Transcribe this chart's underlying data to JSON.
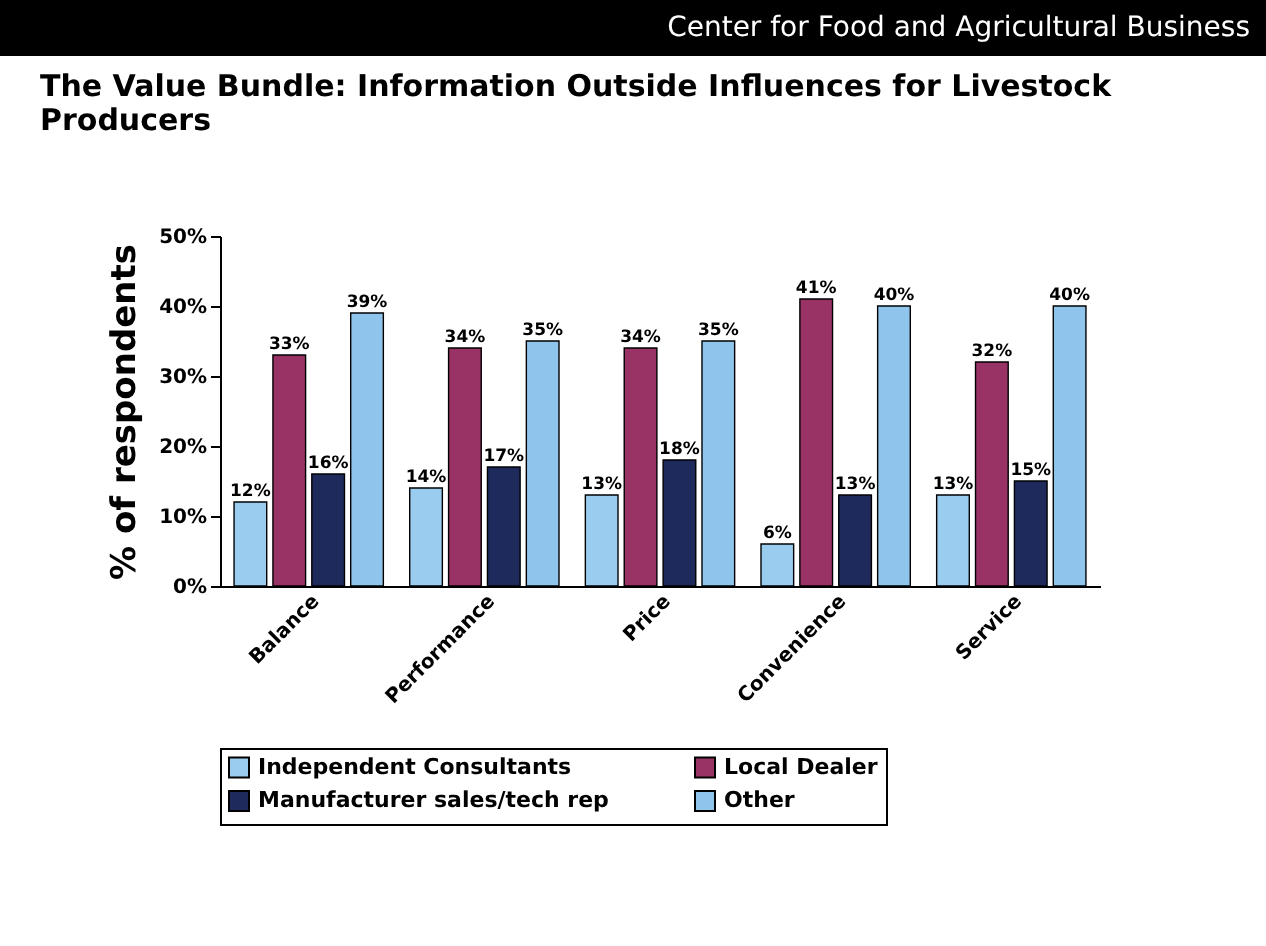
{
  "chart_data": {
    "type": "bar",
    "title": "The Value Bundle: Information Outside Influences for Livestock Producers",
    "annotations": [
      "Center for Food and Agricultural Business"
    ],
    "ylabel": "% of respondents",
    "categories": [
      "Balance",
      "Performance",
      "Price",
      "Convenience",
      "Service"
    ],
    "series": [
      {
        "name": "Independent Consultants",
        "color": "#99ccee",
        "values": [
          12,
          14,
          13,
          6,
          13
        ],
        "value_labels": [
          "12%",
          "14%",
          "13%",
          "6%",
          "13%"
        ]
      },
      {
        "name": "Local Dealer",
        "color": "#993366",
        "values": [
          33,
          34,
          34,
          41,
          32
        ],
        "value_labels": [
          "33%",
          "34%",
          "34%",
          "41%",
          "32%"
        ]
      },
      {
        "name": "Manufacturer sales/tech rep",
        "color": "#1f2a5c",
        "values": [
          16,
          17,
          18,
          13,
          15
        ],
        "value_labels": [
          "16%",
          "17%",
          "18%",
          "13%",
          "15%"
        ]
      },
      {
        "name": "Other",
        "color": "#8fc4ec",
        "values": [
          39,
          35,
          35,
          40,
          40
        ],
        "value_labels": [
          "39%",
          "35%",
          "35%",
          "40%",
          "40%"
        ]
      }
    ],
    "ylim": [
      0,
      50
    ],
    "yticks": [
      {
        "value": 0,
        "label": "0%"
      },
      {
        "value": 10,
        "label": "10%"
      },
      {
        "value": 20,
        "label": "20%"
      },
      {
        "value": 30,
        "label": "30%"
      },
      {
        "value": 40,
        "label": "40%"
      },
      {
        "value": 50,
        "label": "50%"
      }
    ],
    "grid": false,
    "legend": "bottom"
  }
}
